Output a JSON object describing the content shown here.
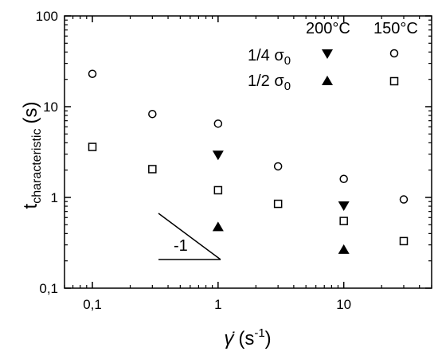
{
  "chart_data": {
    "type": "scatter",
    "x_scale": "log",
    "y_scale": "log",
    "xlim": [
      0.06,
      50
    ],
    "ylim": [
      0.1,
      100
    ],
    "x_ticks": [
      0.1,
      1,
      10
    ],
    "x_tick_labels": [
      "0,1",
      "1",
      "10"
    ],
    "y_ticks": [
      0.1,
      1,
      10,
      100
    ],
    "y_tick_labels": [
      "0,1",
      "1",
      "10",
      "100"
    ],
    "xlabel": "γ̇ (s⁻¹)",
    "ylabel": "t_characteristic (s)",
    "ylabel_main": "t",
    "ylabel_sub": "characteristic",
    "ylabel_unit": "(s)",
    "xlabel_main": "γ̇",
    "xlabel_unit": "(s",
    "xlabel_exp": "-1",
    "xlabel_close": ")",
    "grid": false,
    "legend": {
      "col_headers": [
        "200°C",
        "150°C"
      ],
      "row_labels": [
        "1/4 σ",
        "1/2 σ"
      ],
      "row_label_sub": "0"
    },
    "slope_annotation": "-1",
    "series": [
      {
        "name": "1/4 σ₀ 150°C",
        "marker": "circle-open",
        "x": [
          0.1,
          0.3,
          1,
          3,
          10,
          30
        ],
        "y": [
          23,
          8.3,
          6.5,
          2.2,
          1.6,
          0.95
        ]
      },
      {
        "name": "1/2 σ₀ 150°C",
        "marker": "square-open",
        "x": [
          0.1,
          0.3,
          1,
          3,
          10,
          30
        ],
        "y": [
          3.6,
          2.05,
          1.2,
          0.85,
          0.55,
          0.33
        ]
      },
      {
        "name": "1/4 σ₀ 200°C",
        "marker": "triangle-down-filled",
        "x": [
          1,
          10
        ],
        "y": [
          2.9,
          0.8
        ]
      },
      {
        "name": "1/2 σ₀ 200°C",
        "marker": "triangle-up-filled",
        "x": [
          1,
          10
        ],
        "y": [
          0.48,
          0.27
        ]
      }
    ]
  }
}
